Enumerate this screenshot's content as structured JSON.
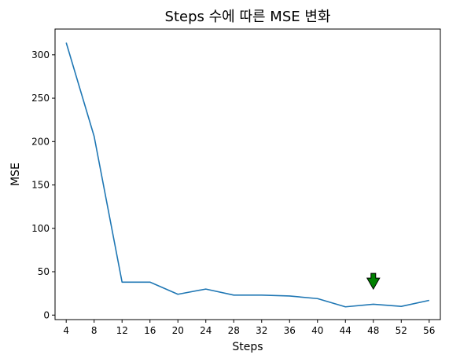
{
  "chart_data": {
    "type": "line",
    "title": "Steps 수에 따른 MSE 변화",
    "xlabel": "Steps",
    "ylabel": "MSE",
    "x": [
      4,
      8,
      12,
      16,
      20,
      24,
      28,
      32,
      36,
      40,
      44,
      48,
      52,
      56
    ],
    "series": [
      {
        "values": [
          314,
          206,
          38,
          38,
          24,
          30,
          23,
          23,
          22,
          19,
          9.5,
          12.5,
          10,
          17
        ],
        "color": "#1f77b4"
      }
    ],
    "xticks": [
      4,
      8,
      12,
      16,
      20,
      24,
      28,
      32,
      36,
      40,
      44,
      48,
      52,
      56
    ],
    "yticks": [
      0,
      50,
      100,
      150,
      200,
      250,
      300
    ],
    "xlim": [
      2.4,
      57.6
    ],
    "ylim": [
      -5.2,
      329.7
    ],
    "grid": false,
    "annotations": [
      {
        "type": "arrow-down",
        "x": 48,
        "y": 30,
        "color": "#008000"
      }
    ]
  }
}
